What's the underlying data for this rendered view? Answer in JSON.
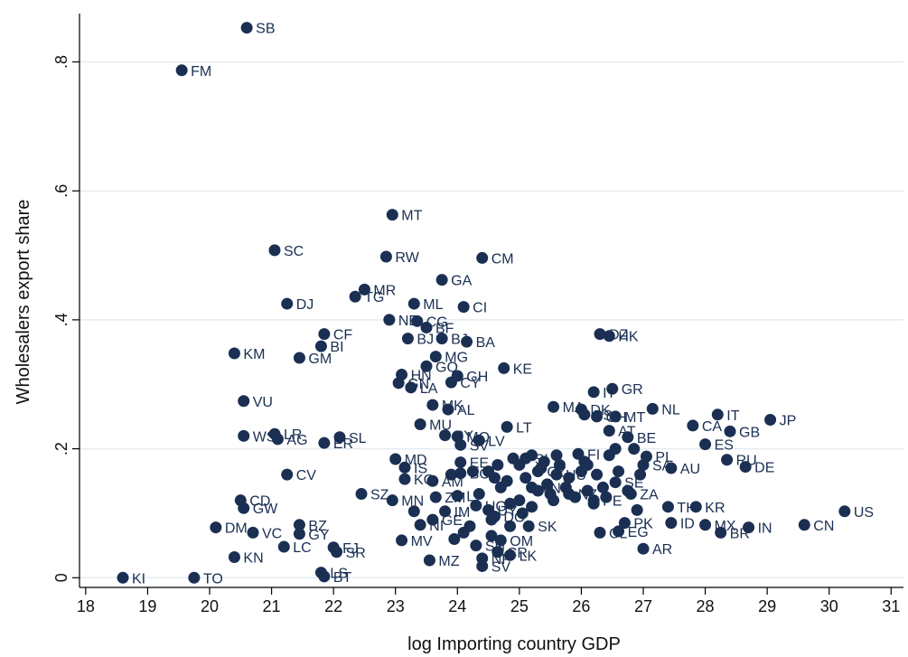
{
  "chart_data": {
    "type": "scatter",
    "title": "",
    "xlabel": "log  Importing country GDP",
    "ylabel": "Wholesalers export share",
    "xlim": [
      17.9,
      31.2
    ],
    "ylim": [
      -0.015,
      0.875
    ],
    "xticks": [
      "18",
      "19",
      "20",
      "21",
      "22",
      "23",
      "24",
      "25",
      "26",
      "27",
      "28",
      "29",
      "30",
      "31"
    ],
    "yticks": [
      {
        "value": 0,
        "label": "0"
      },
      {
        "value": 0.2,
        "label": ".2"
      },
      {
        "value": 0.4,
        "label": ".4"
      },
      {
        "value": 0.6,
        "label": ".6"
      },
      {
        "value": 0.8,
        "label": ".8"
      }
    ],
    "grid": "horizontal",
    "marker_color": "#1a2f52",
    "gridline_color": "#e4ebef",
    "points": [
      {
        "label": "SB",
        "x": 20.6,
        "y": 0.853
      },
      {
        "label": "FM",
        "x": 19.55,
        "y": 0.787
      },
      {
        "label": "MT",
        "x": 22.95,
        "y": 0.563
      },
      {
        "label": "SC",
        "x": 21.05,
        "y": 0.508
      },
      {
        "label": "RW",
        "x": 22.85,
        "y": 0.498
      },
      {
        "label": "CM",
        "x": 24.4,
        "y": 0.496
      },
      {
        "label": "GA",
        "x": 23.75,
        "y": 0.462
      },
      {
        "label": "MR",
        "x": 22.5,
        "y": 0.447
      },
      {
        "label": "TG",
        "x": 22.35,
        "y": 0.436
      },
      {
        "label": "DJ",
        "x": 21.25,
        "y": 0.425
      },
      {
        "label": "ML",
        "x": 23.3,
        "y": 0.425
      },
      {
        "label": "CI",
        "x": 24.1,
        "y": 0.42
      },
      {
        "label": "NE",
        "x": 22.9,
        "y": 0.4
      },
      {
        "label": "CG",
        "x": 23.35,
        "y": 0.398
      },
      {
        "label": "BF",
        "x": 23.5,
        "y": 0.388
      },
      {
        "label": "DZ",
        "x": 26.3,
        "y": 0.378
      },
      {
        "label": "HK",
        "x": 26.45,
        "y": 0.375
      },
      {
        "label": "CF",
        "x": 21.85,
        "y": 0.378
      },
      {
        "label": "BJ",
        "x": 23.2,
        "y": 0.371
      },
      {
        "label": "BJ",
        "x": 23.75,
        "y": 0.371
      },
      {
        "label": "BA",
        "x": 24.15,
        "y": 0.366
      },
      {
        "label": "BI",
        "x": 21.8,
        "y": 0.359
      },
      {
        "label": "KM",
        "x": 20.4,
        "y": 0.348
      },
      {
        "label": "MG",
        "x": 23.65,
        "y": 0.343
      },
      {
        "label": "GM",
        "x": 21.45,
        "y": 0.341
      },
      {
        "label": "GQ",
        "x": 23.5,
        "y": 0.328
      },
      {
        "label": "KE",
        "x": 24.75,
        "y": 0.325
      },
      {
        "label": "GH",
        "x": 24.0,
        "y": 0.313
      },
      {
        "label": "HN",
        "x": 23.1,
        "y": 0.315
      },
      {
        "label": "CY",
        "x": 23.9,
        "y": 0.303
      },
      {
        "label": "GN",
        "x": 23.05,
        "y": 0.302
      },
      {
        "label": "LA",
        "x": 23.25,
        "y": 0.295
      },
      {
        "label": "GR",
        "x": 26.5,
        "y": 0.293
      },
      {
        "label": "IT",
        "x": 26.2,
        "y": 0.288
      },
      {
        "label": "VU",
        "x": 20.55,
        "y": 0.274
      },
      {
        "label": "MK",
        "x": 23.6,
        "y": 0.268
      },
      {
        "label": "MA",
        "x": 25.55,
        "y": 0.265
      },
      {
        "label": "DK",
        "x": 26.0,
        "y": 0.261
      },
      {
        "label": "NL",
        "x": 27.15,
        "y": 0.262
      },
      {
        "label": "AL",
        "x": 23.85,
        "y": 0.261
      },
      {
        "label": "BS",
        "x": 26.05,
        "y": 0.253
      },
      {
        "label": "CH",
        "x": 26.25,
        "y": 0.25
      },
      {
        "label": "MT",
        "x": 26.55,
        "y": 0.25
      },
      {
        "label": "IT",
        "x": 28.2,
        "y": 0.253
      },
      {
        "label": "JP",
        "x": 29.05,
        "y": 0.245
      },
      {
        "label": "MU",
        "x": 23.4,
        "y": 0.238
      },
      {
        "label": "LT",
        "x": 24.8,
        "y": 0.234
      },
      {
        "label": "CA",
        "x": 27.8,
        "y": 0.236
      },
      {
        "label": "GB",
        "x": 28.4,
        "y": 0.227
      },
      {
        "label": "AT",
        "x": 26.45,
        "y": 0.228
      },
      {
        "label": "WS",
        "x": 20.55,
        "y": 0.22
      },
      {
        "label": "LR",
        "x": 21.05,
        "y": 0.223
      },
      {
        "label": "AG",
        "x": 21.1,
        "y": 0.215
      },
      {
        "label": "SL",
        "x": 22.1,
        "y": 0.218
      },
      {
        "label": "ER",
        "x": 21.85,
        "y": 0.209
      },
      {
        "label": "MO",
        "x": 24.0,
        "y": 0.219
      },
      {
        "label": "LV",
        "x": 24.35,
        "y": 0.213
      },
      {
        "label": "BE",
        "x": 26.75,
        "y": 0.218
      },
      {
        "label": "PY",
        "x": 23.8,
        "y": 0.221
      },
      {
        "label": "SV",
        "x": 24.05,
        "y": 0.206
      },
      {
        "label": "ES",
        "x": 28.0,
        "y": 0.207
      },
      {
        "label": "CV",
        "x": 21.25,
        "y": 0.16
      },
      {
        "label": "MD",
        "x": 23.0,
        "y": 0.184
      },
      {
        "label": "IS",
        "x": 23.15,
        "y": 0.171
      },
      {
        "label": "EE",
        "x": 24.05,
        "y": 0.179
      },
      {
        "label": "FI",
        "x": 25.95,
        "y": 0.192
      },
      {
        "label": "PL",
        "x": 27.05,
        "y": 0.188
      },
      {
        "label": "RU",
        "x": 28.35,
        "y": 0.183
      },
      {
        "label": "DE",
        "x": 28.65,
        "y": 0.172
      },
      {
        "label": "AU",
        "x": 27.45,
        "y": 0.17
      },
      {
        "label": "SA",
        "x": 27.0,
        "y": 0.175
      },
      {
        "label": "SI",
        "x": 25.1,
        "y": 0.185
      },
      {
        "label": "BO",
        "x": 24.05,
        "y": 0.162
      },
      {
        "label": "KG",
        "x": 23.15,
        "y": 0.153
      },
      {
        "label": "AM",
        "x": 23.6,
        "y": 0.15
      },
      {
        "label": "SZ",
        "x": 22.45,
        "y": 0.13
      },
      {
        "label": "MN",
        "x": 22.95,
        "y": 0.12
      },
      {
        "label": "ZM",
        "x": 23.65,
        "y": 0.125
      },
      {
        "label": "LT",
        "x": 24.0,
        "y": 0.127
      },
      {
        "label": "NZ",
        "x": 25.8,
        "y": 0.13
      },
      {
        "label": "ZA",
        "x": 26.8,
        "y": 0.13
      },
      {
        "label": "SE",
        "x": 26.55,
        "y": 0.148
      },
      {
        "label": "PE",
        "x": 26.2,
        "y": 0.12
      },
      {
        "label": "CD",
        "x": 20.5,
        "y": 0.12
      },
      {
        "label": "GW",
        "x": 20.55,
        "y": 0.108
      },
      {
        "label": "UG",
        "x": 24.3,
        "y": 0.112
      },
      {
        "label": "BZ",
        "x": 21.45,
        "y": 0.082
      },
      {
        "label": "DM",
        "x": 20.1,
        "y": 0.078
      },
      {
        "label": "VC",
        "x": 20.7,
        "y": 0.07
      },
      {
        "label": "GY",
        "x": 21.45,
        "y": 0.068
      },
      {
        "label": "LC",
        "x": 21.2,
        "y": 0.048
      },
      {
        "label": "FJ",
        "x": 22.0,
        "y": 0.047
      },
      {
        "label": "SR",
        "x": 22.05,
        "y": 0.04
      },
      {
        "label": "KN",
        "x": 20.4,
        "y": 0.032
      },
      {
        "label": "KI",
        "x": 18.6,
        "y": 0.0
      },
      {
        "label": "TO",
        "x": 19.75,
        "y": 0.0
      },
      {
        "label": "LS",
        "x": 21.8,
        "y": 0.008
      },
      {
        "label": "BT",
        "x": 21.85,
        "y": 0.002
      },
      {
        "label": "IM",
        "x": 23.8,
        "y": 0.103
      },
      {
        "label": "GE",
        "x": 23.6,
        "y": 0.09
      },
      {
        "label": "NI",
        "x": 23.4,
        "y": 0.082
      },
      {
        "label": "MV",
        "x": 23.1,
        "y": 0.058
      },
      {
        "label": "MZ",
        "x": 23.55,
        "y": 0.027
      },
      {
        "label": "SN",
        "x": 24.3,
        "y": 0.05
      },
      {
        "label": "NP",
        "x": 24.4,
        "y": 0.03
      },
      {
        "label": "OM",
        "x": 24.7,
        "y": 0.058
      },
      {
        "label": "CR",
        "x": 24.65,
        "y": 0.04
      },
      {
        "label": "SV",
        "x": 24.4,
        "y": 0.018
      },
      {
        "label": "LK",
        "x": 24.85,
        "y": 0.035
      },
      {
        "label": "SK",
        "x": 25.15,
        "y": 0.08
      },
      {
        "label": "VN",
        "x": 25.2,
        "y": 0.14
      },
      {
        "label": "CZ",
        "x": 25.3,
        "y": 0.165
      },
      {
        "label": "HU",
        "x": 25.6,
        "y": 0.16
      },
      {
        "label": "UY",
        "x": 24.5,
        "y": 0.105
      },
      {
        "label": "DO",
        "x": 24.6,
        "y": 0.095
      },
      {
        "label": "PK",
        "x": 26.7,
        "y": 0.085
      },
      {
        "label": "CL",
        "x": 26.3,
        "y": 0.07
      },
      {
        "label": "EG",
        "x": 26.6,
        "y": 0.072
      },
      {
        "label": "AR",
        "x": 27.0,
        "y": 0.045
      },
      {
        "label": "TH",
        "x": 27.4,
        "y": 0.11
      },
      {
        "label": "ID",
        "x": 27.45,
        "y": 0.085
      },
      {
        "label": "KR",
        "x": 27.85,
        "y": 0.11
      },
      {
        "label": "MX",
        "x": 28.0,
        "y": 0.082
      },
      {
        "label": "BR",
        "x": 28.25,
        "y": 0.07
      },
      {
        "label": "IN",
        "x": 28.7,
        "y": 0.078
      },
      {
        "label": "CN",
        "x": 29.6,
        "y": 0.082
      },
      {
        "label": "US",
        "x": 30.25,
        "y": 0.103
      }
    ],
    "cluster_points": [
      {
        "x": 24.5,
        "y": 0.165
      },
      {
        "x": 24.6,
        "y": 0.155
      },
      {
        "x": 24.7,
        "y": 0.14
      },
      {
        "x": 24.8,
        "y": 0.15
      },
      {
        "x": 24.9,
        "y": 0.185
      },
      {
        "x": 25.0,
        "y": 0.175
      },
      {
        "x": 25.2,
        "y": 0.19
      },
      {
        "x": 25.4,
        "y": 0.18
      },
      {
        "x": 25.45,
        "y": 0.145
      },
      {
        "x": 25.5,
        "y": 0.13
      },
      {
        "x": 25.65,
        "y": 0.175
      },
      {
        "x": 25.75,
        "y": 0.14
      },
      {
        "x": 25.9,
        "y": 0.125
      },
      {
        "x": 26.0,
        "y": 0.165
      },
      {
        "x": 26.05,
        "y": 0.18
      },
      {
        "x": 26.1,
        "y": 0.135
      },
      {
        "x": 26.25,
        "y": 0.16
      },
      {
        "x": 26.35,
        "y": 0.14
      },
      {
        "x": 26.45,
        "y": 0.19
      },
      {
        "x": 26.55,
        "y": 0.2
      },
      {
        "x": 26.6,
        "y": 0.165
      },
      {
        "x": 26.75,
        "y": 0.135
      },
      {
        "x": 26.85,
        "y": 0.2
      },
      {
        "x": 26.95,
        "y": 0.16
      },
      {
        "x": 25.0,
        "y": 0.12
      },
      {
        "x": 25.2,
        "y": 0.11
      },
      {
        "x": 25.05,
        "y": 0.1
      },
      {
        "x": 24.85,
        "y": 0.115
      },
      {
        "x": 24.55,
        "y": 0.09
      },
      {
        "x": 24.85,
        "y": 0.08
      },
      {
        "x": 25.35,
        "y": 0.17
      },
      {
        "x": 25.8,
        "y": 0.155
      },
      {
        "x": 26.2,
        "y": 0.115
      },
      {
        "x": 26.4,
        "y": 0.125
      },
      {
        "x": 26.9,
        "y": 0.105
      },
      {
        "x": 24.25,
        "y": 0.165
      },
      {
        "x": 24.2,
        "y": 0.08
      },
      {
        "x": 24.1,
        "y": 0.07
      },
      {
        "x": 23.3,
        "y": 0.103
      },
      {
        "x": 23.9,
        "y": 0.16
      },
      {
        "x": 25.1,
        "y": 0.155
      },
      {
        "x": 25.6,
        "y": 0.19
      },
      {
        "x": 24.65,
        "y": 0.175
      },
      {
        "x": 24.35,
        "y": 0.13
      },
      {
        "x": 23.95,
        "y": 0.06
      },
      {
        "x": 24.55,
        "y": 0.065
      },
      {
        "x": 25.55,
        "y": 0.12
      },
      {
        "x": 26.1,
        "y": 0.175
      },
      {
        "x": 25.3,
        "y": 0.135
      }
    ]
  }
}
